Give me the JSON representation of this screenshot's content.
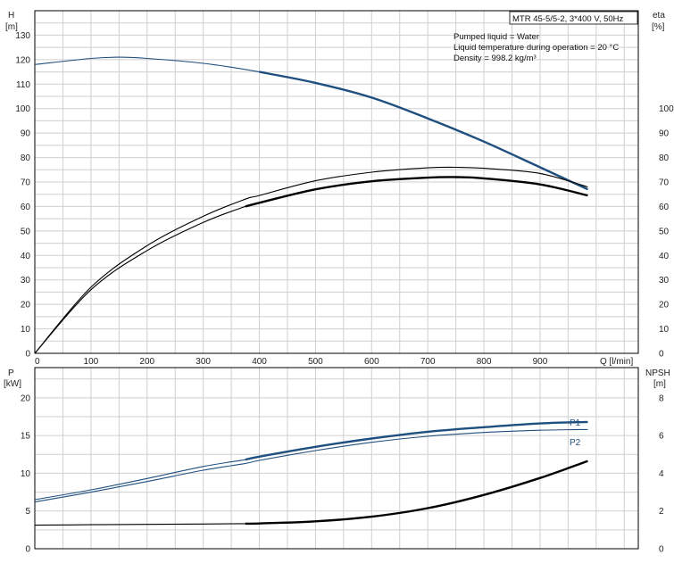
{
  "header": {
    "title": "MTR 45-5/5-2, 3*400 V, 50Hz",
    "notes": [
      "Pumped liquid = Water",
      "Liquid temperature during operation = 20 °C",
      "Density = 998.2 kg/m³"
    ]
  },
  "chart_data": [
    {
      "type": "line",
      "id": "head-efficiency",
      "x_label": "Q [l/min]",
      "y_left_label": [
        "H",
        "[m]"
      ],
      "y_right_label": [
        "eta",
        "[%]"
      ],
      "xlim": [
        0,
        1075
      ],
      "x_ticks": [
        0,
        100,
        200,
        300,
        400,
        500,
        600,
        700,
        800,
        900
      ],
      "ylim_left": [
        0,
        140
      ],
      "y_ticks_left": [
        0,
        10,
        20,
        30,
        40,
        50,
        60,
        70,
        80,
        90,
        100,
        110,
        120,
        130
      ],
      "ylim_right": [
        0,
        140
      ],
      "y_ticks_right": [
        0,
        10,
        20,
        30,
        40,
        50,
        60,
        70,
        80,
        90,
        100
      ],
      "grid": true,
      "series": [
        {
          "axis": "left",
          "color": "#1f4f7f",
          "bold_from": 375,
          "x": [
            0,
            100,
            150,
            200,
            300,
            400,
            500,
            600,
            700,
            800,
            900,
            985
          ],
          "y": [
            118,
            120.5,
            121,
            120.5,
            118.5,
            115,
            110.5,
            104.5,
            96,
            86.5,
            76,
            67
          ]
        },
        {
          "axis": "right",
          "color": "#000000",
          "bold_from": 9999,
          "x": [
            0,
            100,
            200,
            300,
            375,
            400,
            500,
            600,
            700,
            750,
            800,
            900,
            985
          ],
          "y": [
            0,
            27,
            44,
            56,
            63,
            64.5,
            70.5,
            74,
            75.8,
            76,
            75.6,
            73.5,
            68
          ]
        },
        {
          "axis": "right",
          "color": "#000000",
          "bold_from": 375,
          "x": [
            0,
            100,
            200,
            300,
            375,
            400,
            500,
            600,
            700,
            750,
            800,
            900,
            985
          ],
          "y": [
            0,
            26,
            42,
            53.5,
            60,
            61.5,
            67,
            70.3,
            71.8,
            72,
            71.5,
            69,
            64.5
          ]
        }
      ]
    },
    {
      "type": "line",
      "id": "power-npsh",
      "y_left_label": [
        "P",
        "[kW]"
      ],
      "y_right_label": [
        "NPSH",
        "[m]"
      ],
      "xlim": [
        0,
        1075
      ],
      "ylim_left": [
        0,
        24
      ],
      "y_ticks_left": [
        0,
        5,
        10,
        15,
        20
      ],
      "ylim_right": [
        0,
        9.6
      ],
      "y_ticks_right": [
        0,
        2,
        4,
        6,
        8
      ],
      "grid": true,
      "series": [
        {
          "name": "P1",
          "axis": "left",
          "color": "#1f4f7f",
          "bold_from": 375,
          "x": [
            0,
            100,
            200,
            300,
            375,
            400,
            500,
            600,
            700,
            800,
            900,
            985
          ],
          "y": [
            6.5,
            7.8,
            9.3,
            10.9,
            11.8,
            12.2,
            13.5,
            14.6,
            15.5,
            16.1,
            16.6,
            16.8
          ]
        },
        {
          "name": "P2",
          "axis": "left",
          "color": "#1f4f7f",
          "bold_from": 9999,
          "x": [
            0,
            100,
            200,
            300,
            375,
            400,
            500,
            600,
            700,
            800,
            900,
            985
          ],
          "y": [
            6.2,
            7.5,
            8.9,
            10.4,
            11.3,
            11.7,
            13.0,
            14.1,
            14.9,
            15.4,
            15.7,
            15.8
          ]
        },
        {
          "name": "",
          "axis": "right",
          "color": "#000000",
          "bold_from": 375,
          "x": [
            0,
            100,
            200,
            300,
            375,
            400,
            500,
            600,
            700,
            800,
            900,
            985
          ],
          "y": [
            1.25,
            1.27,
            1.29,
            1.31,
            1.33,
            1.34,
            1.45,
            1.7,
            2.15,
            2.85,
            3.75,
            4.65
          ]
        }
      ]
    }
  ]
}
